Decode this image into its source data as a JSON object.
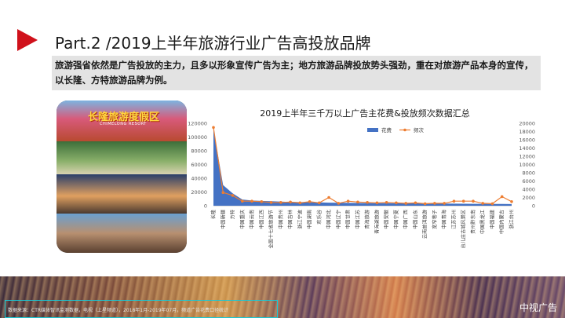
{
  "header": {
    "title": "Part.2 /2019上半年旅游行业广告高投放品牌"
  },
  "banner": {
    "text": "旅游强省依然是广告投放的主力，且多以形象宣传广告为主；地方旅游品牌投放势头强劲，重在对旅游产品本身的宣传，以长隆、方特旅游品牌为例。"
  },
  "photo": {
    "logo": "长隆旅游度假区",
    "logo_sub": "CHIMELONG RESORT"
  },
  "chart_data": {
    "type": "area+line",
    "title": "2019上半年三千万以上广告主花费&投放频次数据汇总",
    "categories": [
      "长隆",
      "中国新疆",
      "方特",
      "中国重庆",
      "中国云南",
      "中国江西",
      "全国十七省旅游节",
      "中国贵州",
      "中国吉林",
      "浙江宁波",
      "中国湖南",
      "欢乐谷",
      "中国河北",
      "中国辽宁",
      "中国甘肃",
      "中国江苏",
      "青海旅游",
      "青海湖旅游",
      "中国安徽",
      "中国宁夏",
      "中国广西",
      "中国山东",
      "云南普洱旅游",
      "宽窄巷子",
      "中国青海",
      "江苏苏州",
      "台儿庄古城风景区",
      "贵州黔东南",
      "中国黑龙江",
      "中国福建",
      "中国内蒙古",
      "浙江台州"
    ],
    "series": [
      {
        "name": "花费",
        "axis": "left",
        "values": [
          112000,
          30000,
          18000,
          9000,
          7500,
          7000,
          6500,
          6000,
          5500,
          5200,
          5000,
          4800,
          4500,
          4300,
          4100,
          4000,
          3900,
          3800,
          3700,
          3600,
          3500,
          3400,
          3300,
          3200,
          3100,
          3000,
          2900,
          2800,
          2700,
          2600,
          2500,
          2400
        ]
      },
      {
        "name": "频次",
        "axis": "right",
        "values": [
          19000,
          3200,
          2500,
          1100,
          1100,
          1000,
          800,
          800,
          900,
          700,
          1000,
          700,
          2000,
          600,
          1100,
          900,
          800,
          700,
          800,
          700,
          600,
          700,
          500,
          600,
          600,
          1100,
          1100,
          1100,
          600,
          500,
          2200,
          1000
        ]
      }
    ],
    "y_left": {
      "min": 0,
      "max": 120000,
      "ticks": [
        "0",
        "20000",
        "40000",
        "60000",
        "80000",
        "100000",
        "120000"
      ]
    },
    "y_right": {
      "min": 0,
      "max": 20000,
      "ticks": [
        "0",
        "2000",
        "4000",
        "6000",
        "8000",
        "10000",
        "12000",
        "14000",
        "16000",
        "18000",
        "20000"
      ]
    },
    "colors": {
      "spend": "#4472c4",
      "freq": "#ed7d31"
    },
    "legend_position": "top-right"
  },
  "footer": {
    "source": "数据来源：CTR媒体智讯监测数据，电视（上星频道），2018年1月-2019年07月，频道广告花费口径统计",
    "brand": "中视广告"
  }
}
